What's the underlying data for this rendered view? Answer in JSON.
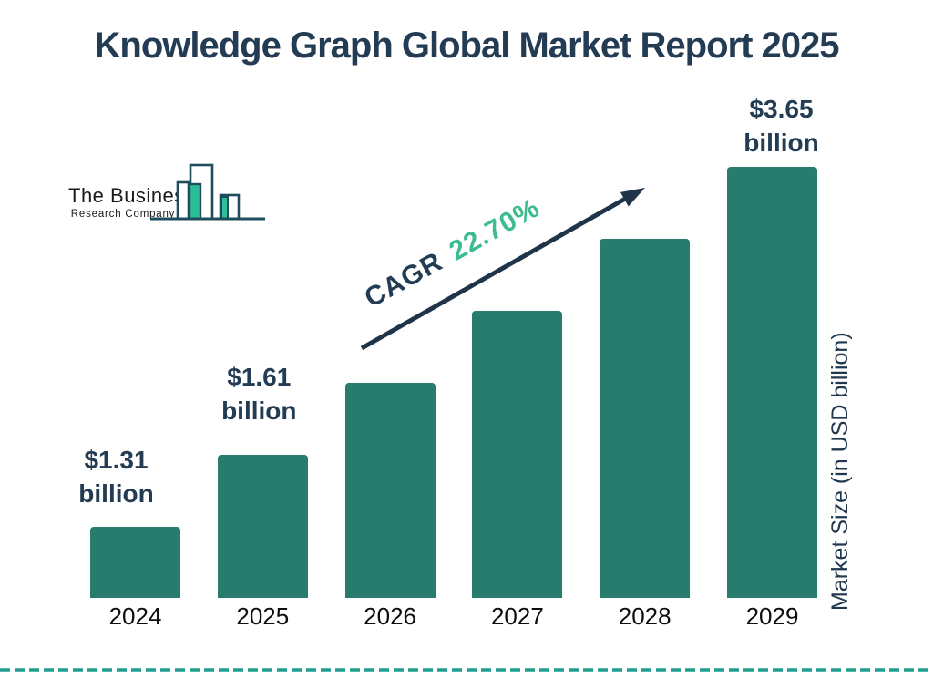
{
  "title": "Knowledge Graph Global Market Report 2025",
  "logo": {
    "line1": "The Business",
    "line2": "Research Company"
  },
  "cagr": {
    "prefix": "CAGR",
    "value": "22.70%"
  },
  "y_axis_label": "Market Size (in USD billion)",
  "colors": {
    "bar": "#287C6D",
    "navy_text": "#233C54",
    "arrow": "#1F3449",
    "cagr_green": "#3DBC8E",
    "dashed_rule": "#1D9E8F",
    "year_text": "#0D0D0D",
    "logo_outline": "#1E4E5E",
    "logo_green": "#2CBE96"
  },
  "chart_data": {
    "type": "bar",
    "title": "Knowledge Graph Global Market Report 2025",
    "categories": [
      "2024",
      "2025",
      "2026",
      "2027",
      "2028",
      "2029"
    ],
    "values": [
      1.31,
      1.61,
      1.98,
      2.42,
      2.97,
      3.65
    ],
    "labeled_values": {
      "2024": "$1.31 billion",
      "2025": "$1.61 billion",
      "2029": "$3.65 billion"
    },
    "value_labels": [
      {
        "index": 0,
        "line1": "$1.31",
        "line2": "billion"
      },
      {
        "index": 1,
        "line1": "$1.61",
        "line2": "billion"
      },
      {
        "index": 5,
        "line1": "$3.65",
        "line2": "billion"
      }
    ],
    "cagr": "22.70%",
    "xlabel": "",
    "ylabel": "Market Size (in USD billion)",
    "legend": "none",
    "grid": false,
    "axes_lines": false,
    "bar_color": "#287C6D",
    "note_style": "bar heights stylized (equal increments); values for 2026-2028 implied by 22.70% CAGR, not labeled on chart"
  }
}
